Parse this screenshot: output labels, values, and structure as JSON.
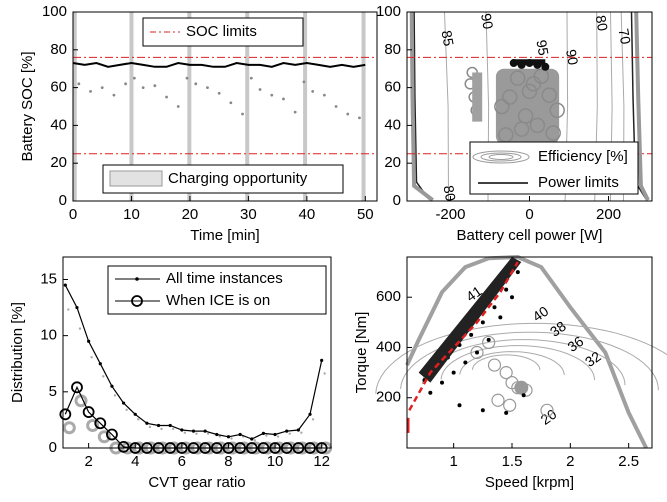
{
  "chart_data": [
    {
      "id": "soc-time",
      "type": "line",
      "xlabel": "Time [min]",
      "ylabel": "Battery SOC [%]",
      "xlim": [
        0,
        52
      ],
      "ylim": [
        0,
        100
      ],
      "xticks": [
        0,
        10,
        20,
        30,
        40,
        50
      ],
      "yticks": [
        0,
        20,
        40,
        60,
        80,
        100
      ],
      "grid": false,
      "legend_top": {
        "placement": "top-right",
        "entries": [
          {
            "label": "SOC limits",
            "style": "red-dashdot"
          }
        ]
      },
      "legend_bottom": {
        "placement": "bottom-right",
        "entries": [
          {
            "label": "Charging opportunity",
            "style": "gray-patch"
          }
        ]
      },
      "soc_limits": [
        25,
        76
      ],
      "charging_bands": [
        0.3,
        10,
        19.9,
        29.8,
        39.7,
        49.7
      ],
      "series": [
        {
          "style": "black-solid",
          "x": [
            0,
            2,
            4,
            6,
            8,
            10,
            12,
            14,
            16,
            18,
            20,
            22,
            24,
            26,
            28,
            30,
            32,
            34,
            36,
            38,
            40,
            42,
            44,
            46,
            48,
            50
          ],
          "values": [
            73,
            72,
            73,
            71,
            72,
            73,
            72,
            71,
            71,
            73,
            72,
            72,
            71,
            71,
            73,
            72,
            72,
            71,
            73,
            72,
            73,
            72,
            71,
            72,
            71,
            72
          ]
        },
        {
          "style": "gray-dotted",
          "x": [
            1,
            3,
            5,
            7,
            9,
            10.5,
            12,
            14,
            16,
            18,
            19.5,
            21,
            23,
            25,
            27,
            29,
            30.5,
            32,
            34,
            36,
            38,
            39.5,
            41,
            43,
            45,
            47,
            49
          ],
          "values": [
            62,
            58,
            60,
            56,
            62,
            65,
            60,
            61,
            55,
            50,
            65,
            62,
            60,
            57,
            52,
            46,
            65,
            59,
            56,
            54,
            47,
            63,
            58,
            56,
            50,
            46,
            44
          ]
        }
      ]
    },
    {
      "id": "soc-power",
      "type": "scatter",
      "xlabel": "Battery cell power [W]",
      "ylabel": "",
      "xlim": [
        -310,
        310
      ],
      "ylim": [
        0,
        100
      ],
      "xticks": [
        -200,
        0,
        200
      ],
      "yticks": [
        0,
        20,
        40,
        60,
        80,
        100
      ],
      "grid": false,
      "soc_limits": [
        25,
        76
      ],
      "legend": {
        "placement": "bottom-right",
        "entries": [
          {
            "label": "Efficiency [%]",
            "style": "gray-ellipses"
          },
          {
            "label": "Power limits",
            "style": "black-line"
          }
        ]
      },
      "contour_labels": [
        "85",
        "90",
        "95",
        "90",
        "80",
        "70",
        "80"
      ],
      "series": [
        {
          "style": "gray-circles",
          "x": [
            -60,
            -20,
            20,
            60,
            -50,
            0,
            50,
            -30,
            30,
            -70,
            70,
            -10,
            10
          ],
          "values": [
            35,
            38,
            40,
            36,
            55,
            58,
            56,
            65,
            66,
            50,
            48,
            45,
            62
          ]
        },
        {
          "style": "gray-circles-small",
          "x": [
            -150,
            -140,
            -135,
            -145
          ],
          "values": [
            62,
            55,
            48,
            68
          ]
        },
        {
          "style": "black-circles",
          "x": [
            -20,
            0,
            20,
            40,
            -40
          ],
          "values": [
            72,
            73,
            72,
            71,
            73
          ]
        }
      ]
    },
    {
      "id": "cvt-distribution",
      "type": "line",
      "xlabel": "CVT gear ratio",
      "ylabel": "Distribution [%]",
      "xlim": [
        0.9,
        12.4
      ],
      "ylim": [
        0,
        17
      ],
      "xticks": [
        2,
        4,
        6,
        8,
        10,
        12
      ],
      "yticks": [
        0,
        5,
        10,
        15
      ],
      "grid": false,
      "legend": {
        "placement": "top-right",
        "entries": [
          {
            "label": "All time instances",
            "style": "black-line-dot"
          },
          {
            "label": "When ICE is on",
            "style": "black-line-circle"
          }
        ]
      },
      "series": [
        {
          "name": "All time instances",
          "x": [
            1,
            1.5,
            2,
            2.5,
            3,
            3.5,
            4,
            4.5,
            5,
            5.5,
            6,
            6.5,
            7,
            7.5,
            8,
            8.5,
            9,
            9.5,
            10,
            10.5,
            11,
            11.5,
            12
          ],
          "values": [
            14.5,
            12.5,
            9.5,
            7.5,
            5.5,
            4,
            3,
            2.2,
            2,
            2,
            1.6,
            1.5,
            1.5,
            1.2,
            1,
            1.2,
            0.8,
            1.3,
            1.2,
            1.5,
            1.6,
            3,
            7.8
          ]
        },
        {
          "name": "When ICE is on",
          "x": [
            1,
            1.5,
            2,
            2.5,
            3,
            3.5,
            4,
            4.5,
            5,
            5.5,
            6,
            6.5,
            7,
            7.5,
            8,
            8.5,
            9,
            9.5,
            10,
            10.5,
            11,
            11.5,
            12
          ],
          "values": [
            3,
            5.4,
            3.2,
            2.2,
            1.2,
            0.1,
            0,
            0,
            0,
            0,
            0,
            0,
            0,
            0,
            0,
            0,
            0,
            0,
            0,
            0,
            0,
            0,
            0
          ]
        }
      ]
    },
    {
      "id": "engine-map",
      "type": "scatter",
      "xlabel": "Speed [krpm]",
      "ylabel": "Torque [Nm]",
      "xlim": [
        0.6,
        2.7
      ],
      "ylim": [
        0,
        760
      ],
      "xticks": [
        1,
        1.5,
        2,
        2.5
      ],
      "yticks": [
        200,
        400,
        600
      ],
      "grid": false,
      "contour_labels": [
        "41",
        "40",
        "38",
        "36",
        "32",
        "20"
      ],
      "series": [
        {
          "style": "black-dots",
          "x": [
            0.75,
            0.85,
            0.95,
            1.05,
            1.15,
            1.25,
            1.35,
            1.45,
            1.55,
            0.9,
            1.0,
            1.1,
            1.2,
            1.3,
            1.4,
            1.5,
            0.8,
            1.6,
            1.05,
            1.25,
            1.45
          ],
          "values": [
            270,
            320,
            360,
            410,
            450,
            500,
            560,
            630,
            700,
            260,
            300,
            340,
            380,
            430,
            520,
            600,
            220,
            210,
            170,
            150,
            140
          ]
        },
        {
          "style": "gray-circles",
          "x": [
            1.2,
            1.35,
            1.45,
            1.5,
            1.55,
            1.62,
            1.38,
            1.48,
            1.8,
            1.3
          ],
          "values": [
            380,
            330,
            300,
            260,
            240,
            230,
            190,
            170,
            150,
            420
          ]
        },
        {
          "style": "red-dashed",
          "x": [
            0.62,
            0.8,
            1.0,
            1.2,
            1.4,
            1.55
          ],
          "values": [
            150,
            300,
            400,
            500,
            620,
            740
          ]
        }
      ]
    }
  ]
}
